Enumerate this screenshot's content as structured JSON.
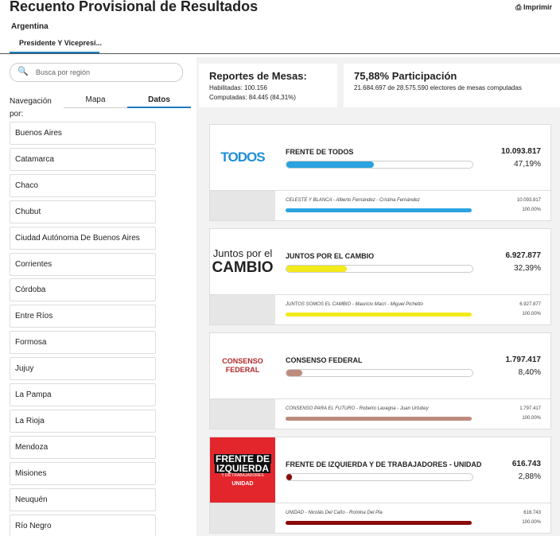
{
  "header": {
    "title": "Recuento Provisional de Resultados",
    "print": "Imprimir",
    "region": "Argentina",
    "tab": "Presidente Y Vicepresi..."
  },
  "sidebar": {
    "search_placeholder": "Busca por región",
    "nav_label": "Navegación por:",
    "tabs": [
      "Mapa",
      "Datos"
    ],
    "regions": [
      "Buenos Aires",
      "Catamarca",
      "Chaco",
      "Chubut",
      "Ciudad Autónoma De Buenos Aires",
      "Corrientes",
      "Córdoba",
      "Entre Ríos",
      "Formosa",
      "Jujuy",
      "La Pampa",
      "La Rioja",
      "Mendoza",
      "Misiones",
      "Neuquén",
      "Río Negro"
    ]
  },
  "summary": {
    "reports_title": "Reportes de Mesas:",
    "enabled": "Habilitadas: 100.156",
    "computed": "Computadas: 84.445 (84,31%)",
    "participation_title": "75,88% Participación",
    "participation_detail": "21.684.697 de 28.575.590 electores de mesas computadas"
  },
  "parties": [
    {
      "name": "FRENTE DE TODOS",
      "votes": "10.093.817",
      "percent": 47.19,
      "percent_label": "47,19%",
      "color": "#2aa3df",
      "logo": [
        "TODOS"
      ],
      "list": "CELESTE Y BLANCA - Alberto Fernández - Cristina Fernández",
      "list_votes": "10.093.817",
      "list_percent": 100,
      "list_percent_label": "100.00%"
    },
    {
      "name": "JUNTOS POR EL CAMBIO",
      "votes": "6.927.877",
      "percent": 32.39,
      "percent_label": "32,39%",
      "color": "#f3ea1c",
      "logo": [
        "Juntos por el",
        "CAMBIO"
      ],
      "list": "JUNTOS SOMOS EL CAMBIO - Mauricio Macri - Miguel Pichetto",
      "list_votes": "6.927.877",
      "list_percent": 100,
      "list_percent_label": "100.00%"
    },
    {
      "name": "CONSENSO FEDERAL",
      "votes": "1.797.417",
      "percent": 8.4,
      "percent_label": "8,40%",
      "color": "#bb8b7c",
      "logo": [
        "CONSENSO",
        "FEDERAL"
      ],
      "list": "CONSENSO PARA EL FUTURO - Roberto Lavagna - Juan Urtubey",
      "list_votes": "1.797.417",
      "list_percent": 100,
      "list_percent_label": "100.00%"
    },
    {
      "name": "FRENTE DE IZQUIERDA Y DE TRABAJADORES - UNIDAD",
      "votes": "616.743",
      "percent": 2.88,
      "percent_label": "2,88%",
      "color": "#8b0a0a",
      "logo": [
        "FRENTE DE",
        "IZQUIERDA",
        "Y DE TRABAJADORES",
        "UNIDAD"
      ],
      "list": "UNIDAD - Nicolás Del Caño - Romina Del Pla",
      "list_votes": "616.743",
      "list_percent": 100,
      "list_percent_label": "100.00%"
    }
  ]
}
